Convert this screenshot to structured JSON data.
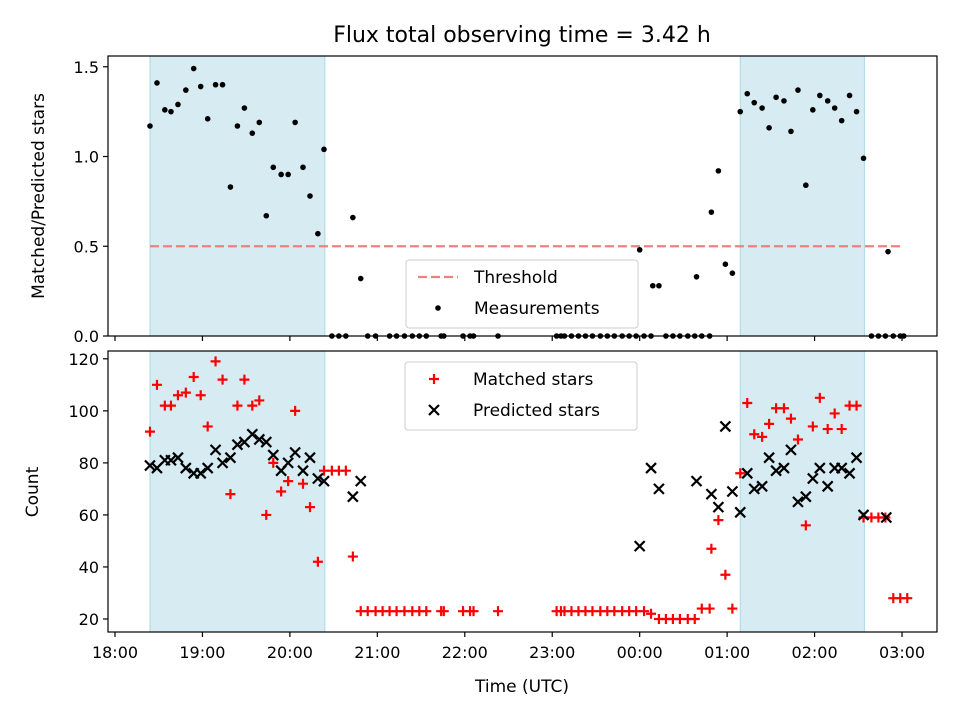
{
  "figure": {
    "title": "Flux total observing time = 3.42 h",
    "xlabel": "Time (UTC)",
    "xtick_labels": [
      "18:00",
      "19:00",
      "20:00",
      "21:00",
      "22:00",
      "23:00",
      "00:00",
      "01:00",
      "02:00",
      "03:00"
    ]
  },
  "colors": {
    "band": "#add8e6",
    "threshold": "#f08080",
    "measurement": "#000000",
    "matched": "#ff0000",
    "predicted": "#000000"
  },
  "chart_data": [
    {
      "type": "scatter",
      "panel": "top",
      "ylabel": "Matched/Predicted stars",
      "xlim": [
        17.92,
        27.4
      ],
      "ylim": [
        0,
        1.56
      ],
      "yticks": [
        0.0,
        0.5,
        1.0,
        1.5
      ],
      "ytick_labels": [
        "0.0",
        "0.5",
        "1.0",
        "1.5"
      ],
      "x_unit": "hours since 18:00 UTC",
      "shaded_intervals": [
        [
          18.4,
          20.4
        ],
        [
          25.15,
          26.57
        ]
      ],
      "threshold": {
        "name": "Threshold",
        "y": 0.5,
        "x_range": [
          18.4,
          27.0
        ]
      },
      "legend": {
        "position": "lower-center",
        "entries": [
          "Threshold",
          "Measurements"
        ]
      },
      "series": [
        {
          "name": "Measurements",
          "marker": "dot",
          "points": [
            [
              18.4,
              1.17
            ],
            [
              18.48,
              1.41
            ],
            [
              18.57,
              1.26
            ],
            [
              18.64,
              1.25
            ],
            [
              18.72,
              1.29
            ],
            [
              18.81,
              1.37
            ],
            [
              18.9,
              1.49
            ],
            [
              18.98,
              1.39
            ],
            [
              19.06,
              1.21
            ],
            [
              19.15,
              1.4
            ],
            [
              19.23,
              1.4
            ],
            [
              19.32,
              0.83
            ],
            [
              19.4,
              1.17
            ],
            [
              19.48,
              1.27
            ],
            [
              19.57,
              1.13
            ],
            [
              19.65,
              1.19
            ],
            [
              19.73,
              0.67
            ],
            [
              19.81,
              0.94
            ],
            [
              19.9,
              0.9
            ],
            [
              19.98,
              0.9
            ],
            [
              20.06,
              1.19
            ],
            [
              20.15,
              0.94
            ],
            [
              20.23,
              0.78
            ],
            [
              20.32,
              0.57
            ],
            [
              20.39,
              1.04
            ],
            [
              20.48,
              0.0
            ],
            [
              20.56,
              0.0
            ],
            [
              20.64,
              0.0
            ],
            [
              20.72,
              0.66
            ],
            [
              20.81,
              0.32
            ],
            [
              20.89,
              0.0
            ],
            [
              20.98,
              0.0
            ],
            [
              21.14,
              0.0
            ],
            [
              21.22,
              0.0
            ],
            [
              21.31,
              0.0
            ],
            [
              21.4,
              0.0
            ],
            [
              21.48,
              0.0
            ],
            [
              21.56,
              0.0
            ],
            [
              21.73,
              0.0
            ],
            [
              21.76,
              0.0
            ],
            [
              21.98,
              0.0
            ],
            [
              22.06,
              0.0
            ],
            [
              22.1,
              0.0
            ],
            [
              22.38,
              0.0
            ],
            [
              23.05,
              0.0
            ],
            [
              23.1,
              0.0
            ],
            [
              23.14,
              0.0
            ],
            [
              23.22,
              0.0
            ],
            [
              23.3,
              0.0
            ],
            [
              23.38,
              0.0
            ],
            [
              23.46,
              0.0
            ],
            [
              23.55,
              0.0
            ],
            [
              23.63,
              0.0
            ],
            [
              23.71,
              0.0
            ],
            [
              23.8,
              0.0
            ],
            [
              23.88,
              0.0
            ],
            [
              23.96,
              0.0
            ],
            [
              24.0,
              0.48
            ],
            [
              24.05,
              0.0
            ],
            [
              24.13,
              0.0
            ],
            [
              24.15,
              0.28
            ],
            [
              24.22,
              0.28
            ],
            [
              24.3,
              0.0
            ],
            [
              24.38,
              0.0
            ],
            [
              24.46,
              0.0
            ],
            [
              24.55,
              0.0
            ],
            [
              24.63,
              0.0
            ],
            [
              24.65,
              0.33
            ],
            [
              24.71,
              0.0
            ],
            [
              24.8,
              0.0
            ],
            [
              24.82,
              0.69
            ],
            [
              24.9,
              0.92
            ],
            [
              24.98,
              0.4
            ],
            [
              25.06,
              0.35
            ],
            [
              25.15,
              1.25
            ],
            [
              25.23,
              1.35
            ],
            [
              25.31,
              1.3
            ],
            [
              25.4,
              1.27
            ],
            [
              25.48,
              1.16
            ],
            [
              25.56,
              1.33
            ],
            [
              25.65,
              1.31
            ],
            [
              25.73,
              1.14
            ],
            [
              25.81,
              1.37
            ],
            [
              25.9,
              0.84
            ],
            [
              25.98,
              1.26
            ],
            [
              26.06,
              1.34
            ],
            [
              26.15,
              1.31
            ],
            [
              26.23,
              1.27
            ],
            [
              26.31,
              1.2
            ],
            [
              26.4,
              1.34
            ],
            [
              26.48,
              1.25
            ],
            [
              26.56,
              0.99
            ],
            [
              26.65,
              0.0
            ],
            [
              26.73,
              0.0
            ],
            [
              26.81,
              0.0
            ],
            [
              26.84,
              0.47
            ],
            [
              26.9,
              0.0
            ],
            [
              26.98,
              0.0
            ],
            [
              27.02,
              0.0
            ]
          ]
        }
      ]
    },
    {
      "type": "scatter",
      "panel": "bottom",
      "ylabel": "Count",
      "xlim": [
        17.92,
        27.4
      ],
      "ylim": [
        15,
        123
      ],
      "yticks": [
        20,
        40,
        60,
        80,
        100,
        120
      ],
      "ytick_labels": [
        "20",
        "40",
        "60",
        "80",
        "100",
        "120"
      ],
      "x_unit": "hours since 18:00 UTC",
      "shaded_intervals": [
        [
          18.4,
          20.4
        ],
        [
          25.15,
          26.57
        ]
      ],
      "legend": {
        "position": "upper-center",
        "entries": [
          "Matched stars",
          "Predicted stars"
        ]
      },
      "series": [
        {
          "name": "Matched stars",
          "marker": "plus",
          "points": [
            [
              18.4,
              92
            ],
            [
              18.48,
              110
            ],
            [
              18.57,
              102
            ],
            [
              18.64,
              102
            ],
            [
              18.72,
              106
            ],
            [
              18.81,
              107
            ],
            [
              18.9,
              113
            ],
            [
              18.98,
              106
            ],
            [
              19.06,
              94
            ],
            [
              19.15,
              119
            ],
            [
              19.23,
              112
            ],
            [
              19.32,
              68
            ],
            [
              19.4,
              102
            ],
            [
              19.48,
              112
            ],
            [
              19.57,
              102
            ],
            [
              19.65,
              104
            ],
            [
              19.73,
              60
            ],
            [
              19.81,
              80
            ],
            [
              19.9,
              69
            ],
            [
              19.98,
              73
            ],
            [
              20.06,
              100
            ],
            [
              20.15,
              72
            ],
            [
              20.23,
              63
            ],
            [
              20.32,
              42
            ],
            [
              20.39,
              77
            ],
            [
              20.48,
              77
            ],
            [
              20.56,
              77
            ],
            [
              20.64,
              77
            ],
            [
              20.72,
              44
            ],
            [
              20.81,
              23
            ],
            [
              20.89,
              23
            ],
            [
              20.98,
              23
            ],
            [
              21.06,
              23
            ],
            [
              21.14,
              23
            ],
            [
              21.22,
              23
            ],
            [
              21.31,
              23
            ],
            [
              21.4,
              23
            ],
            [
              21.48,
              23
            ],
            [
              21.56,
              23
            ],
            [
              21.73,
              23
            ],
            [
              21.76,
              23
            ],
            [
              21.98,
              23
            ],
            [
              22.06,
              23
            ],
            [
              22.1,
              23
            ],
            [
              22.38,
              23
            ],
            [
              23.05,
              23
            ],
            [
              23.1,
              23
            ],
            [
              23.14,
              23
            ],
            [
              23.22,
              23
            ],
            [
              23.3,
              23
            ],
            [
              23.38,
              23
            ],
            [
              23.46,
              23
            ],
            [
              23.55,
              23
            ],
            [
              23.63,
              23
            ],
            [
              23.71,
              23
            ],
            [
              23.8,
              23
            ],
            [
              23.88,
              23
            ],
            [
              23.96,
              23
            ],
            [
              24.05,
              23
            ],
            [
              24.13,
              22
            ],
            [
              24.22,
              20
            ],
            [
              24.3,
              20
            ],
            [
              24.38,
              20
            ],
            [
              24.46,
              20
            ],
            [
              24.55,
              20
            ],
            [
              24.63,
              20
            ],
            [
              24.71,
              24
            ],
            [
              24.8,
              24
            ],
            [
              24.82,
              47
            ],
            [
              24.9,
              58
            ],
            [
              24.98,
              37
            ],
            [
              25.06,
              24
            ],
            [
              25.15,
              76
            ],
            [
              25.23,
              103
            ],
            [
              25.31,
              91
            ],
            [
              25.4,
              90
            ],
            [
              25.48,
              95
            ],
            [
              25.56,
              101
            ],
            [
              25.65,
              101
            ],
            [
              25.73,
              97
            ],
            [
              25.81,
              89
            ],
            [
              25.9,
              56
            ],
            [
              25.98,
              94
            ],
            [
              26.06,
              105
            ],
            [
              26.15,
              93
            ],
            [
              26.23,
              99
            ],
            [
              26.31,
              93
            ],
            [
              26.4,
              102
            ],
            [
              26.48,
              102
            ],
            [
              26.56,
              59
            ],
            [
              26.65,
              59
            ],
            [
              26.73,
              59
            ],
            [
              26.81,
              59
            ],
            [
              26.9,
              28
            ],
            [
              26.98,
              28
            ],
            [
              27.06,
              28
            ]
          ]
        },
        {
          "name": "Predicted stars",
          "marker": "cross",
          "points": [
            [
              18.4,
              79
            ],
            [
              18.48,
              78
            ],
            [
              18.57,
              81
            ],
            [
              18.64,
              81
            ],
            [
              18.72,
              82
            ],
            [
              18.81,
              78
            ],
            [
              18.9,
              76
            ],
            [
              18.98,
              76
            ],
            [
              19.06,
              78
            ],
            [
              19.15,
              85
            ],
            [
              19.23,
              80
            ],
            [
              19.32,
              82
            ],
            [
              19.4,
              87
            ],
            [
              19.48,
              88
            ],
            [
              19.57,
              91
            ],
            [
              19.65,
              89
            ],
            [
              19.73,
              88
            ],
            [
              19.81,
              83
            ],
            [
              19.9,
              77
            ],
            [
              19.98,
              80
            ],
            [
              20.06,
              84
            ],
            [
              20.15,
              77
            ],
            [
              20.23,
              82
            ],
            [
              20.32,
              74
            ],
            [
              20.39,
              73
            ],
            [
              20.72,
              67
            ],
            [
              20.81,
              73
            ],
            [
              24.0,
              48
            ],
            [
              24.13,
              78
            ],
            [
              24.22,
              70
            ],
            [
              24.65,
              73
            ],
            [
              24.82,
              68
            ],
            [
              24.9,
              63
            ],
            [
              24.98,
              94
            ],
            [
              25.06,
              69
            ],
            [
              25.15,
              61
            ],
            [
              25.23,
              76
            ],
            [
              25.31,
              70
            ],
            [
              25.4,
              71
            ],
            [
              25.48,
              82
            ],
            [
              25.56,
              77
            ],
            [
              25.65,
              78
            ],
            [
              25.73,
              85
            ],
            [
              25.81,
              65
            ],
            [
              25.9,
              67
            ],
            [
              25.98,
              74
            ],
            [
              26.06,
              78
            ],
            [
              26.15,
              71
            ],
            [
              26.23,
              78
            ],
            [
              26.31,
              78
            ],
            [
              26.4,
              76
            ],
            [
              26.48,
              82
            ],
            [
              26.56,
              60
            ],
            [
              26.82,
              59
            ]
          ]
        }
      ]
    }
  ]
}
